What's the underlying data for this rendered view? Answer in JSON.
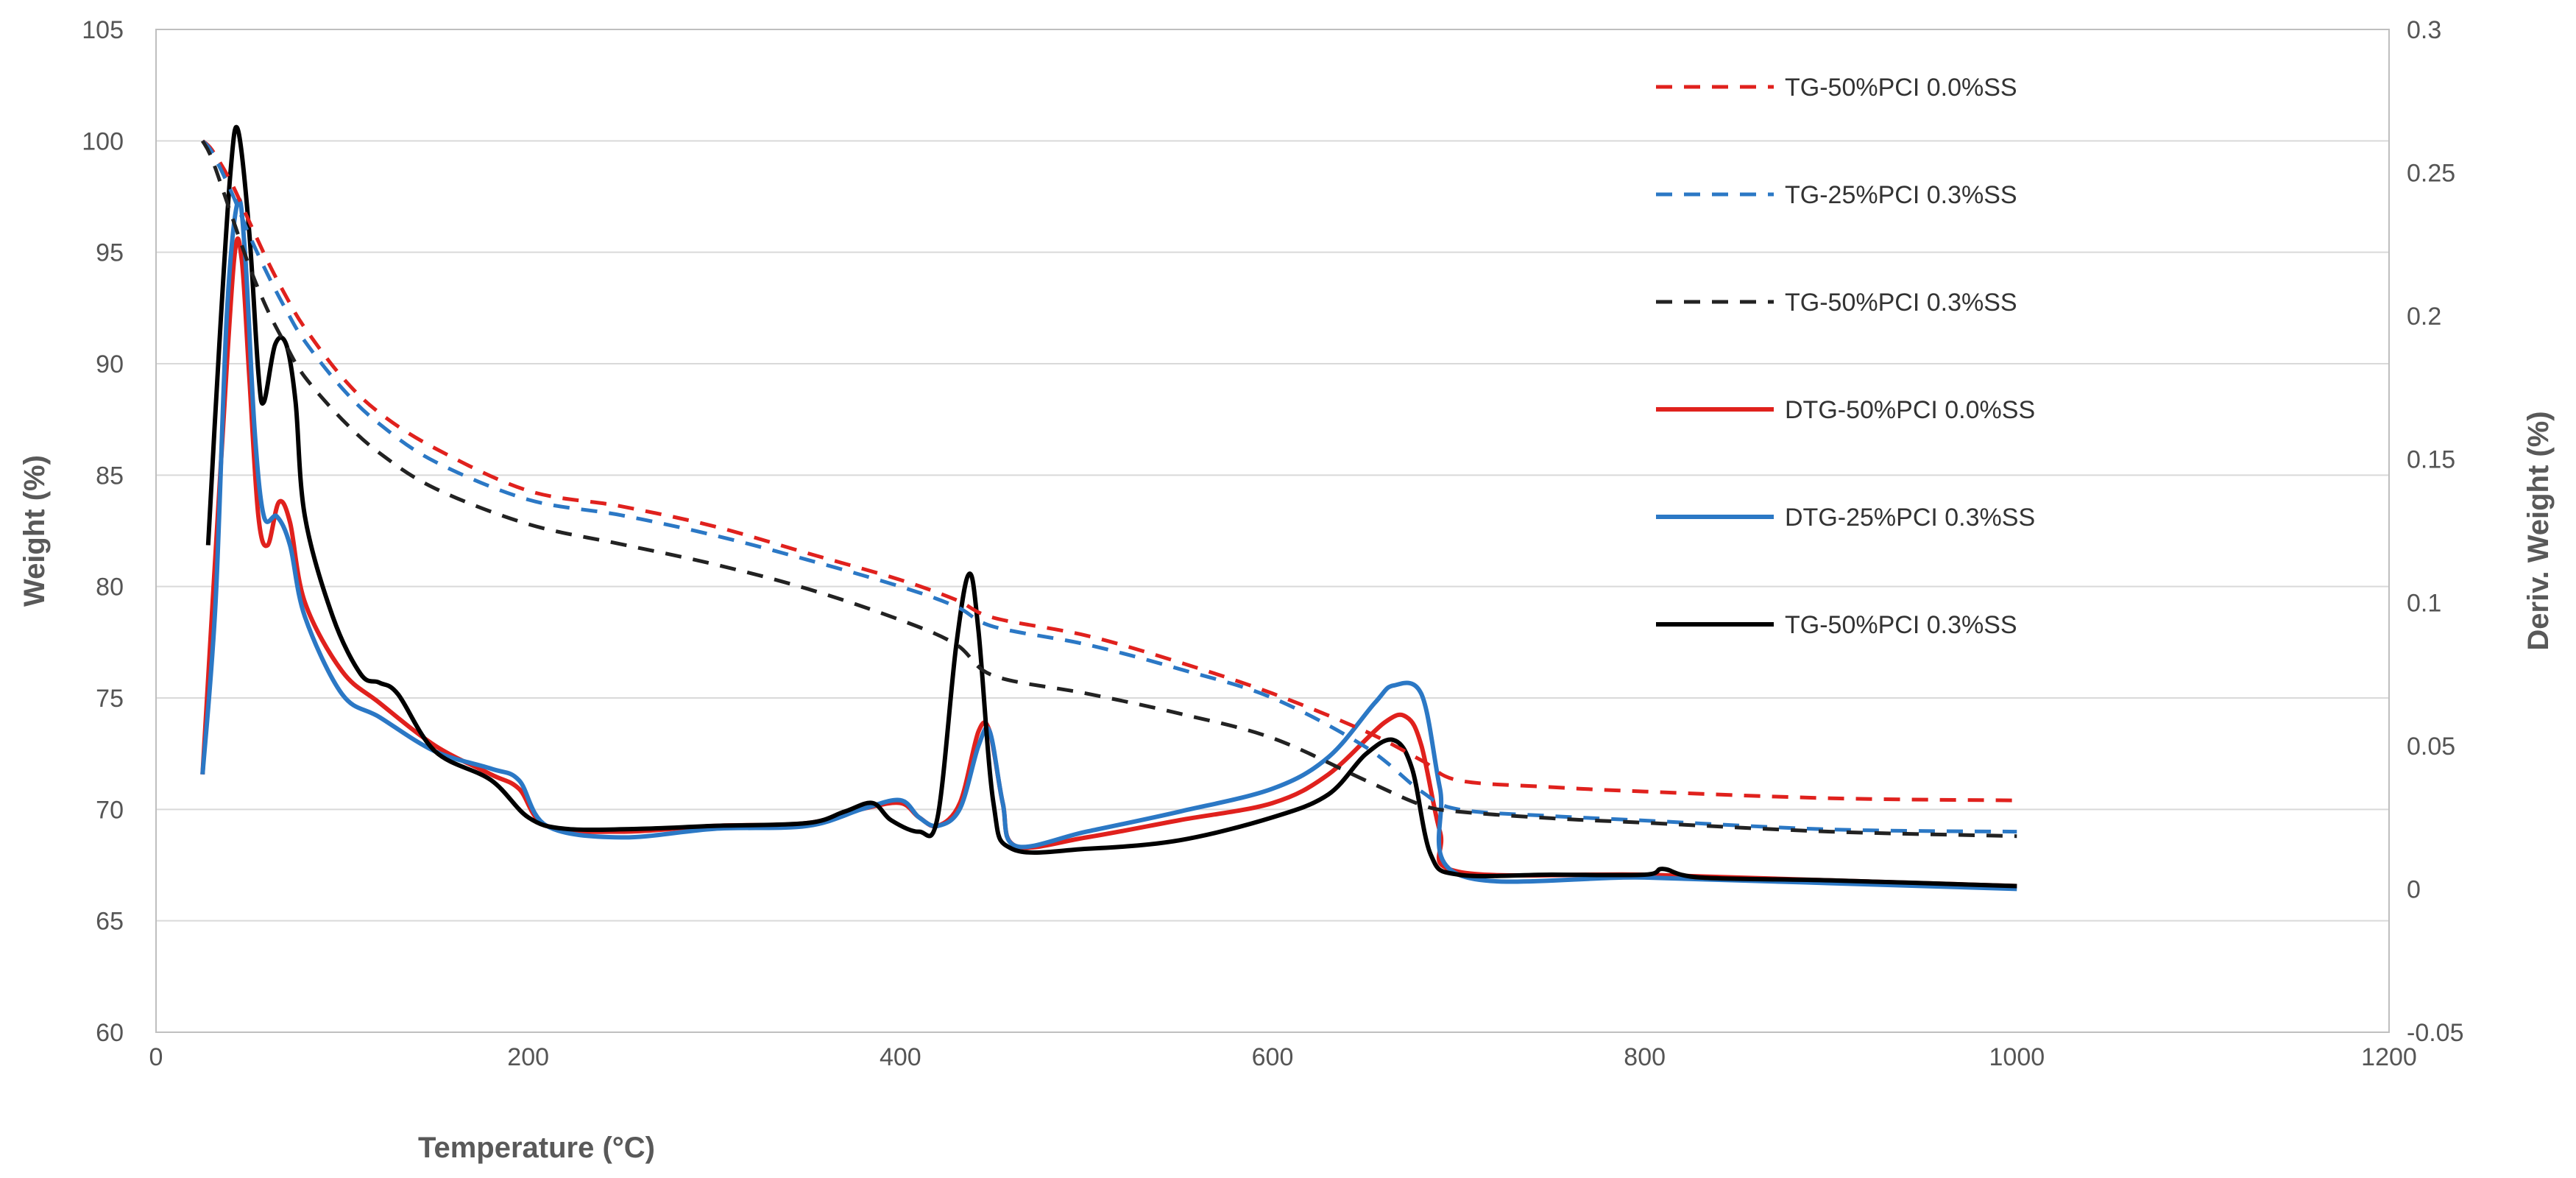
{
  "chart_data": {
    "type": "line",
    "title": "",
    "xlabel": "Temperature (°C)",
    "ylabel": "Weight (%)",
    "y2label": "Deriv. Weight (%)",
    "xlim": [
      0,
      1200
    ],
    "ylim": [
      60,
      105
    ],
    "y2lim": [
      -0.05,
      0.3
    ],
    "xticks": [
      0,
      200,
      400,
      600,
      800,
      1000,
      1200
    ],
    "yticks": [
      60,
      65,
      70,
      75,
      80,
      85,
      90,
      95,
      100,
      105
    ],
    "y2ticks": [
      "-0.05",
      "0",
      "0.05",
      "0.1",
      "0.15",
      "0.2",
      "0.25",
      "0.3"
    ],
    "grid": true,
    "legend_position": "top-right",
    "series": [
      {
        "name": "TG-50%PCI 0.0%SS",
        "axis": "left",
        "color": "#e0211d",
        "dash": true,
        "points": [
          [
            25,
            100
          ],
          [
            30,
            99.6
          ],
          [
            40,
            98.2
          ],
          [
            50,
            96.4
          ],
          [
            60,
            94.6
          ],
          [
            70,
            93
          ],
          [
            80,
            91.6
          ],
          [
            100,
            89.4
          ],
          [
            120,
            87.8
          ],
          [
            150,
            86.2
          ],
          [
            200,
            84.3
          ],
          [
            250,
            83.6
          ],
          [
            300,
            82.7
          ],
          [
            350,
            81.5
          ],
          [
            400,
            80.3
          ],
          [
            430,
            79.4
          ],
          [
            450,
            78.6
          ],
          [
            500,
            77.8
          ],
          [
            550,
            76.6
          ],
          [
            600,
            75.2
          ],
          [
            650,
            73.5
          ],
          [
            680,
            72.2
          ],
          [
            700,
            71.3
          ],
          [
            750,
            71
          ],
          [
            800,
            70.8
          ],
          [
            900,
            70.5
          ],
          [
            1000,
            70.4
          ]
        ]
      },
      {
        "name": "TG-25%PCI 0.3%SS",
        "axis": "left",
        "color": "#2b78c5",
        "dash": true,
        "points": [
          [
            25,
            100
          ],
          [
            30,
            99.5
          ],
          [
            40,
            97.8
          ],
          [
            50,
            95.8
          ],
          [
            60,
            94
          ],
          [
            70,
            92.4
          ],
          [
            80,
            91
          ],
          [
            100,
            88.9
          ],
          [
            120,
            87.3
          ],
          [
            150,
            85.6
          ],
          [
            200,
            83.9
          ],
          [
            250,
            83.2
          ],
          [
            300,
            82.3
          ],
          [
            350,
            81.2
          ],
          [
            400,
            80
          ],
          [
            430,
            79.1
          ],
          [
            450,
            78.2
          ],
          [
            500,
            77.4
          ],
          [
            550,
            76.3
          ],
          [
            600,
            75
          ],
          [
            650,
            72.8
          ],
          [
            680,
            70.8
          ],
          [
            700,
            70
          ],
          [
            750,
            69.7
          ],
          [
            800,
            69.5
          ],
          [
            900,
            69.1
          ],
          [
            1000,
            69
          ]
        ]
      },
      {
        "name": "TG-50%PCI 0.3%SS",
        "axis": "left",
        "color": "#222222",
        "dash": true,
        "points": [
          [
            25,
            100
          ],
          [
            30,
            99.2
          ],
          [
            40,
            96.8
          ],
          [
            50,
            94.4
          ],
          [
            60,
            92.4
          ],
          [
            70,
            90.8
          ],
          [
            80,
            89.4
          ],
          [
            100,
            87.5
          ],
          [
            120,
            86
          ],
          [
            150,
            84.4
          ],
          [
            200,
            82.8
          ],
          [
            250,
            81.9
          ],
          [
            300,
            81
          ],
          [
            350,
            79.9
          ],
          [
            400,
            78.5
          ],
          [
            430,
            77.4
          ],
          [
            450,
            76
          ],
          [
            500,
            75.2
          ],
          [
            550,
            74.3
          ],
          [
            600,
            73.2
          ],
          [
            650,
            71.3
          ],
          [
            680,
            70.2
          ],
          [
            700,
            69.9
          ],
          [
            750,
            69.6
          ],
          [
            800,
            69.4
          ],
          [
            900,
            69
          ],
          [
            1000,
            68.8
          ]
        ]
      },
      {
        "name": "DTG-50%PCI 0.0%SS",
        "axis": "right",
        "color": "#e0211d",
        "dash": false,
        "points": [
          [
            25,
            0.04
          ],
          [
            35,
            0.15
          ],
          [
            42,
            0.22
          ],
          [
            46,
            0.22
          ],
          [
            50,
            0.18
          ],
          [
            55,
            0.13
          ],
          [
            60,
            0.12
          ],
          [
            66,
            0.135
          ],
          [
            72,
            0.128
          ],
          [
            80,
            0.1
          ],
          [
            100,
            0.076
          ],
          [
            120,
            0.065
          ],
          [
            150,
            0.05
          ],
          [
            180,
            0.04
          ],
          [
            195,
            0.035
          ],
          [
            210,
            0.022
          ],
          [
            250,
            0.02
          ],
          [
            300,
            0.022
          ],
          [
            350,
            0.023
          ],
          [
            380,
            0.028
          ],
          [
            400,
            0.03
          ],
          [
            410,
            0.025
          ],
          [
            420,
            0.022
          ],
          [
            432,
            0.03
          ],
          [
            442,
            0.055
          ],
          [
            448,
            0.055
          ],
          [
            455,
            0.03
          ],
          [
            462,
            0.015
          ],
          [
            500,
            0.018
          ],
          [
            550,
            0.024
          ],
          [
            600,
            0.03
          ],
          [
            630,
            0.04
          ],
          [
            660,
            0.058
          ],
          [
            672,
            0.06
          ],
          [
            680,
            0.05
          ],
          [
            690,
            0.02
          ],
          [
            700,
            0.006
          ],
          [
            800,
            0.005
          ],
          [
            900,
            0.003
          ],
          [
            1000,
            0.001
          ]
        ]
      },
      {
        "name": "DTG-25%PCI 0.3%SS",
        "axis": "right",
        "color": "#2b78c5",
        "dash": false,
        "points": [
          [
            25,
            0.04
          ],
          [
            32,
            0.1
          ],
          [
            38,
            0.2
          ],
          [
            44,
            0.24
          ],
          [
            48,
            0.22
          ],
          [
            53,
            0.16
          ],
          [
            58,
            0.13
          ],
          [
            65,
            0.13
          ],
          [
            72,
            0.12
          ],
          [
            80,
            0.095
          ],
          [
            100,
            0.068
          ],
          [
            120,
            0.06
          ],
          [
            150,
            0.048
          ],
          [
            180,
            0.042
          ],
          [
            195,
            0.038
          ],
          [
            210,
            0.022
          ],
          [
            250,
            0.018
          ],
          [
            300,
            0.021
          ],
          [
            350,
            0.022
          ],
          [
            380,
            0.028
          ],
          [
            400,
            0.031
          ],
          [
            410,
            0.025
          ],
          [
            420,
            0.022
          ],
          [
            432,
            0.028
          ],
          [
            442,
            0.05
          ],
          [
            448,
            0.055
          ],
          [
            455,
            0.03
          ],
          [
            462,
            0.015
          ],
          [
            500,
            0.02
          ],
          [
            550,
            0.027
          ],
          [
            600,
            0.035
          ],
          [
            630,
            0.046
          ],
          [
            655,
            0.065
          ],
          [
            665,
            0.071
          ],
          [
            680,
            0.068
          ],
          [
            690,
            0.035
          ],
          [
            700,
            0.005
          ],
          [
            800,
            0.004
          ],
          [
            900,
            0.002
          ],
          [
            1000,
            0
          ]
        ]
      },
      {
        "name": "TG-50%PCI 0.3%SS",
        "axis": "right",
        "color": "#000000",
        "dash": false,
        "points": [
          [
            28,
            0.12
          ],
          [
            34,
            0.19
          ],
          [
            40,
            0.25
          ],
          [
            44,
            0.265
          ],
          [
            50,
            0.23
          ],
          [
            55,
            0.18
          ],
          [
            58,
            0.17
          ],
          [
            64,
            0.19
          ],
          [
            70,
            0.19
          ],
          [
            75,
            0.17
          ],
          [
            80,
            0.13
          ],
          [
            95,
            0.095
          ],
          [
            110,
            0.075
          ],
          [
            120,
            0.072
          ],
          [
            130,
            0.068
          ],
          [
            150,
            0.048
          ],
          [
            180,
            0.038
          ],
          [
            200,
            0.025
          ],
          [
            220,
            0.021
          ],
          [
            260,
            0.021
          ],
          [
            300,
            0.022
          ],
          [
            350,
            0.023
          ],
          [
            370,
            0.027
          ],
          [
            385,
            0.03
          ],
          [
            395,
            0.024
          ],
          [
            410,
            0.02
          ],
          [
            420,
            0.025
          ],
          [
            430,
            0.085
          ],
          [
            437,
            0.11
          ],
          [
            442,
            0.09
          ],
          [
            450,
            0.03
          ],
          [
            460,
            0.014
          ],
          [
            500,
            0.014
          ],
          [
            550,
            0.017
          ],
          [
            600,
            0.025
          ],
          [
            630,
            0.033
          ],
          [
            650,
            0.047
          ],
          [
            665,
            0.052
          ],
          [
            675,
            0.042
          ],
          [
            685,
            0.012
          ],
          [
            700,
            0.005
          ],
          [
            750,
            0.005
          ],
          [
            800,
            0.005
          ],
          [
            810,
            0.007
          ],
          [
            830,
            0.004
          ],
          [
            900,
            0.003
          ],
          [
            1000,
            0.001
          ]
        ]
      }
    ]
  }
}
